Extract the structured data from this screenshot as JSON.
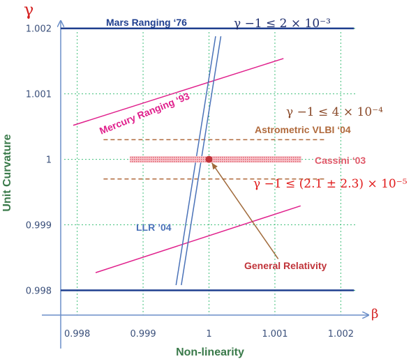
{
  "chart_data": {
    "type": "scatter",
    "y_axis_symbol": "γ",
    "x_axis_symbol": "β",
    "ylabel": "Unit Curvature",
    "xlabel": "Non-linearity",
    "xlim": [
      0.99775,
      1.00225
    ],
    "ylim": [
      0.99775,
      1.00205
    ],
    "x_ticks": [
      {
        "value": 0.998,
        "label": "0.998"
      },
      {
        "value": 0.999,
        "label": "0.999"
      },
      {
        "value": 1.0,
        "label": "1"
      },
      {
        "value": 1.001,
        "label": "1.001"
      },
      {
        "value": 1.002,
        "label": "1.002"
      }
    ],
    "y_ticks": [
      {
        "value": 0.998,
        "label": "0.998"
      },
      {
        "value": 0.999,
        "label": "0.999"
      },
      {
        "value": 1.0,
        "label": "1"
      },
      {
        "value": 1.001,
        "label": "1.001"
      },
      {
        "value": 1.002,
        "label": "1.002"
      }
    ],
    "grid": true,
    "constraints": [
      {
        "label": "Mars Ranging ‘76",
        "color": "#1f3f8f",
        "style": "solid",
        "segments": [
          [
            [
              0.99775,
              1.002
            ],
            [
              1.0022,
              1.002
            ]
          ],
          [
            [
              0.99775,
              0.998
            ],
            [
              1.0022,
              0.998
            ]
          ]
        ]
      },
      {
        "label": "Mercury Ranging ‘93",
        "color": "#e0208c",
        "style": "solid",
        "segments": [
          [
            [
              0.99794,
              1.00052
            ],
            [
              1.00113,
              1.00154
            ]
          ],
          [
            [
              0.99828,
              0.99827
            ],
            [
              1.00139,
              0.99929
            ]
          ]
        ]
      },
      {
        "label": "Astrometric VLBI ‘04",
        "color": "#b06a3c",
        "style": "dashed",
        "segments": [
          [
            [
              0.9984,
              1.0003
            ],
            [
              1.00175,
              1.0003
            ]
          ],
          [
            [
              0.9984,
              0.9997
            ],
            [
              1.00175,
              0.9997
            ]
          ]
        ]
      },
      {
        "label": "LLR ’04",
        "color": "#4a72b8",
        "style": "solid",
        "segments": [
          [
            [
              0.9995,
              0.99808
            ],
            [
              1.0001,
              1.00188
            ]
          ],
          [
            [
              0.99958,
              0.99808
            ],
            [
              1.00018,
              1.00188
            ]
          ]
        ]
      },
      {
        "label": "Cassini ‘03",
        "color": "#e05a6a",
        "style": "band",
        "x_range": [
          0.9988,
          1.0014
        ],
        "y_range": [
          0.99995,
          1.00005
        ]
      }
    ],
    "point": {
      "label": "General Relativity",
      "x": 1.0,
      "y": 1.0,
      "color": "#c0343a"
    },
    "arrow_from": {
      "x": 1.00105,
      "y": 0.99848
    }
  },
  "equations": [
    {
      "text": "γ −1 ≤ 2 × 10⁻³",
      "color": "#1f2f6f"
    },
    {
      "text": "γ −1 ≤ 4 × 10⁻⁴",
      "color": "#8a4a2a"
    },
    {
      "text": "γ −1 ≤ (2.1 ± 2.3) × 10⁻⁵",
      "color": "#e01a1a"
    }
  ]
}
